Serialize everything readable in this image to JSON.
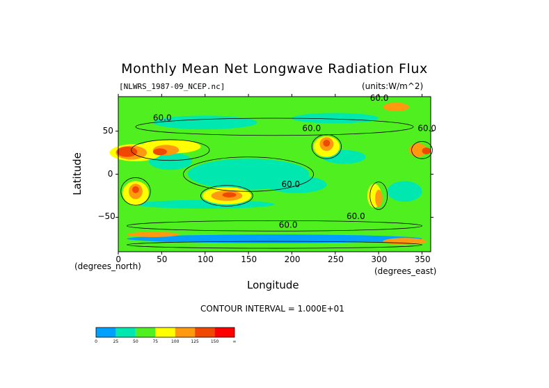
{
  "chart_data": {
    "type": "heatmap",
    "title": "Monthly Mean Net Longwave Radiation Flux",
    "subtitle_left": "[NLWRS_1987-09_NCEP.nc]",
    "subtitle_right": "(units:W/m^2)",
    "xlabel": "Longitude",
    "ylabel": "Latitude",
    "x_unit_label": "(degrees_east)",
    "y_unit_label": "(degrees_north)",
    "xlim": [
      0,
      360
    ],
    "ylim": [
      -90,
      90
    ],
    "x_ticks": [
      "0",
      "50",
      "100",
      "150",
      "200",
      "250",
      "300",
      "350"
    ],
    "y_ticks": [
      "50",
      "0",
      "−50"
    ],
    "contour_interval_text": "CONTOUR INTERVAL = 1.000E+01",
    "contour_labels": [
      "60.0",
      "60.0",
      "60.0",
      "60.0",
      "60.0",
      "60.0",
      "60.0"
    ],
    "colorbar": {
      "ticks": [
        "0",
        "25",
        "50",
        "75",
        "100",
        "125",
        "150",
        "∞"
      ],
      "colors": [
        "#00a0ff",
        "#00e8b0",
        "#50f020",
        "#ffff00",
        "#ff9a10",
        "#f04800",
        "#ff0000"
      ]
    }
  }
}
